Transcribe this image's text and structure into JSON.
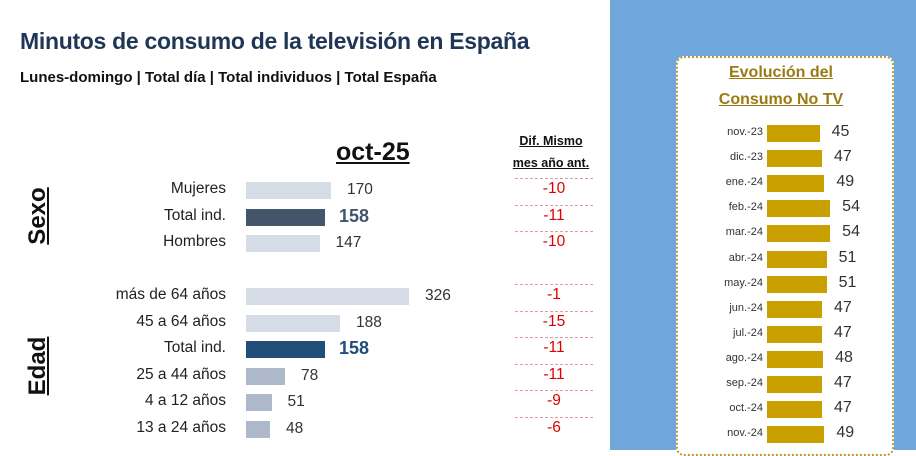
{
  "header": {
    "title": "Minutos de consumo de la televisión en España",
    "subtitle": "Lunes-domingo | Total día | Total individuos | Total España"
  },
  "chart_data": [
    {
      "type": "bar",
      "orientation": "horizontal",
      "title": "oct-25",
      "dif_header": [
        "Dif. Mismo",
        "mes año ant."
      ],
      "groups": [
        {
          "name": "Sexo",
          "rows": [
            {
              "label": "Mujeres",
              "value": 170,
              "dif": "-10",
              "total": false
            },
            {
              "label": "Total ind.",
              "value": 158,
              "dif": "-11",
              "total": true
            },
            {
              "label": "Hombres",
              "value": 147,
              "dif": "-10",
              "total": false
            }
          ]
        },
        {
          "name": "Edad",
          "rows": [
            {
              "label": "más de 64 años",
              "value": 326,
              "dif": "-1",
              "total": false
            },
            {
              "label": "45 a 64 años",
              "value": 188,
              "dif": "-15",
              "total": false
            },
            {
              "label": "Total ind.",
              "value": 158,
              "dif": "-11",
              "total": true
            },
            {
              "label": "25 a 44 años",
              "value": 78,
              "dif": "-11",
              "total": false
            },
            {
              "label": "4 a 12 años",
              "value": 51,
              "dif": "-9",
              "total": false
            },
            {
              "label": "13 a 24 años",
              "value": 48,
              "dif": "-6",
              "total": false
            }
          ]
        }
      ]
    },
    {
      "type": "bar",
      "orientation": "horizontal",
      "title_lines": [
        "Evolución del",
        "Consumo No TV"
      ],
      "categories": [
        "nov.-23",
        "dic.-23",
        "ene.-24",
        "feb.-24",
        "mar.-24",
        "abr.-24",
        "may.-24",
        "jun.-24",
        "jul.-24",
        "ago.-24",
        "sep.-24",
        "oct.-24",
        "nov.-24"
      ],
      "values": [
        45,
        47,
        49,
        54,
        54,
        51,
        51,
        47,
        47,
        48,
        47,
        47,
        49
      ]
    }
  ],
  "colors": {
    "title": "#1f3656",
    "sexo_total": "#44546a",
    "edad_total": "#1f4e79",
    "light_bar": "#d6dce5",
    "mid_bar": "#adb9ca",
    "dif": "#e00000",
    "panel_bg": "#6fa7dc",
    "gold": "#c9a000",
    "gold_text": "#9a7a12"
  }
}
